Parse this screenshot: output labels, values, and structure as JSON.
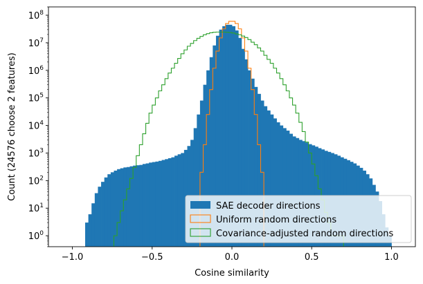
{
  "chart_data": {
    "type": "histogram",
    "title": "",
    "xlabel": "Cosine similarity",
    "ylabel": "Count (24576 choose 2 features)",
    "xlim": [
      -1.15,
      1.15
    ],
    "ylim": [
      0.4,
      200000000
    ],
    "yscale": "log",
    "grid": false,
    "legend_position": "bottom-right",
    "x_ticks": [
      {
        "value": -1.0,
        "label": "−1.0"
      },
      {
        "value": -0.5,
        "label": "−0.5"
      },
      {
        "value": 0.0,
        "label": "0.0"
      },
      {
        "value": 0.5,
        "label": "0.5"
      },
      {
        "value": 1.0,
        "label": "1.0"
      }
    ],
    "y_ticks": [
      {
        "exp": 0,
        "label": "10",
        "sup": "0"
      },
      {
        "exp": 1,
        "label": "10",
        "sup": "1"
      },
      {
        "exp": 2,
        "label": "10",
        "sup": "2"
      },
      {
        "exp": 3,
        "label": "10",
        "sup": "3"
      },
      {
        "exp": 4,
        "label": "10",
        "sup": "4"
      },
      {
        "exp": 5,
        "label": "10",
        "sup": "5"
      },
      {
        "exp": 6,
        "label": "10",
        "sup": "6"
      },
      {
        "exp": 7,
        "label": "10",
        "sup": "7"
      },
      {
        "exp": 8,
        "label": "10",
        "sup": "8"
      }
    ],
    "series": [
      {
        "name": "SAE decoder directions",
        "style": "filled",
        "color": "#1f77b4",
        "bin_width": 0.02,
        "bin_starts": [
          -0.92,
          -0.9,
          -0.88,
          -0.86,
          -0.84,
          -0.82,
          -0.8,
          -0.78,
          -0.76,
          -0.74,
          -0.72,
          -0.7,
          -0.68,
          -0.66,
          -0.64,
          -0.62,
          -0.6,
          -0.58,
          -0.56,
          -0.54,
          -0.52,
          -0.5,
          -0.48,
          -0.46,
          -0.44,
          -0.42,
          -0.4,
          -0.38,
          -0.36,
          -0.34,
          -0.32,
          -0.3,
          -0.28,
          -0.26,
          -0.24,
          -0.22,
          -0.2,
          -0.18,
          -0.16,
          -0.14,
          -0.12,
          -0.1,
          -0.08,
          -0.06,
          -0.04,
          -0.02,
          0.0,
          0.02,
          0.04,
          0.06,
          0.08,
          0.1,
          0.12,
          0.14,
          0.16,
          0.18,
          0.2,
          0.22,
          0.24,
          0.26,
          0.28,
          0.3,
          0.32,
          0.34,
          0.36,
          0.38,
          0.4,
          0.42,
          0.44,
          0.46,
          0.48,
          0.5,
          0.52,
          0.54,
          0.56,
          0.58,
          0.6,
          0.62,
          0.64,
          0.66,
          0.68,
          0.7,
          0.72,
          0.74,
          0.76,
          0.78,
          0.8,
          0.82,
          0.84,
          0.86,
          0.88,
          0.9,
          0.92,
          0.94,
          0.96,
          0.98
        ],
        "values": [
          3,
          6,
          15,
          35,
          60,
          90,
          130,
          170,
          200,
          230,
          260,
          280,
          300,
          310,
          330,
          350,
          360,
          370,
          400,
          420,
          450,
          470,
          490,
          520,
          560,
          600,
          650,
          700,
          800,
          900,
          1000,
          1300,
          1800,
          3000,
          8000,
          25000,
          80000,
          300000,
          1000000,
          3000000,
          8000000,
          18000000,
          30000000,
          40000000,
          45000000,
          45000000,
          40000000,
          28000000,
          15000000,
          6000000,
          2500000,
          1000000,
          500000,
          250000,
          140000,
          80000,
          50000,
          35000,
          25000,
          18000,
          13000,
          10000,
          8000,
          6500,
          5000,
          4000,
          3500,
          3000,
          2700,
          2400,
          2100,
          1900,
          1700,
          1500,
          1350,
          1200,
          1100,
          1000,
          900,
          800,
          700,
          620,
          550,
          480,
          420,
          350,
          290,
          230,
          170,
          120,
          70,
          40,
          18,
          6,
          2,
          1
        ]
      },
      {
        "name": "Uniform random directions",
        "style": "step",
        "color": "#ff7f0e",
        "bin_width": 0.02,
        "bin_starts": [
          -0.2,
          -0.18,
          -0.16,
          -0.14,
          -0.12,
          -0.1,
          -0.08,
          -0.06,
          -0.04,
          -0.02,
          0.0,
          0.02,
          0.04,
          0.06,
          0.08,
          0.1,
          0.12,
          0.14,
          0.16,
          0.18
        ],
        "values": [
          200,
          2000,
          25000,
          200000,
          1200000,
          5000000,
          15000000,
          32000000,
          50000000,
          60000000,
          60000000,
          50000000,
          32000000,
          15000000,
          5000000,
          1200000,
          200000,
          25000,
          2000,
          200
        ]
      },
      {
        "name": "Covariance-adjusted random directions",
        "style": "step",
        "color": "#2ca02c",
        "bin_width": 0.02,
        "bin_starts": [
          -0.74,
          -0.72,
          -0.7,
          -0.68,
          -0.66,
          -0.64,
          -0.62,
          -0.6,
          -0.58,
          -0.56,
          -0.54,
          -0.52,
          -0.5,
          -0.48,
          -0.46,
          -0.44,
          -0.42,
          -0.4,
          -0.38,
          -0.36,
          -0.34,
          -0.32,
          -0.3,
          -0.28,
          -0.26,
          -0.24,
          -0.22,
          -0.2,
          -0.18,
          -0.16,
          -0.14,
          -0.12,
          -0.1,
          -0.08,
          -0.06,
          -0.04,
          -0.02,
          0.0,
          0.02,
          0.04,
          0.06,
          0.08,
          0.1,
          0.12,
          0.14,
          0.16,
          0.18,
          0.2,
          0.22,
          0.24,
          0.26,
          0.28,
          0.3,
          0.32,
          0.34,
          0.36,
          0.38,
          0.4,
          0.42,
          0.44,
          0.46,
          0.48,
          0.5,
          0.52,
          0.54,
          0.56,
          0.58,
          0.6,
          0.62,
          0.64,
          0.66,
          0.68
        ],
        "values": [
          1,
          3,
          8,
          20,
          50,
          120,
          300,
          800,
          2000,
          5000,
          12000,
          28000,
          55000,
          100000,
          180000,
          300000,
          500000,
          800000,
          1200000,
          1800000,
          2700000,
          4000000,
          5500000,
          7500000,
          9500000,
          12000000,
          14500000,
          17000000,
          19500000,
          21500000,
          23000000,
          24000000,
          24500000,
          24500000,
          24500000,
          24000000,
          23500000,
          22500000,
          21000000,
          19500000,
          17500000,
          15500000,
          13000000,
          10500000,
          8500000,
          6500000,
          5000000,
          3500000,
          2500000,
          1800000,
          1200000,
          800000,
          500000,
          300000,
          180000,
          100000,
          55000,
          28000,
          13000,
          6000,
          2500,
          1000,
          400,
          150,
          50,
          20,
          7,
          3,
          1,
          1,
          1,
          1
        ]
      }
    ]
  }
}
